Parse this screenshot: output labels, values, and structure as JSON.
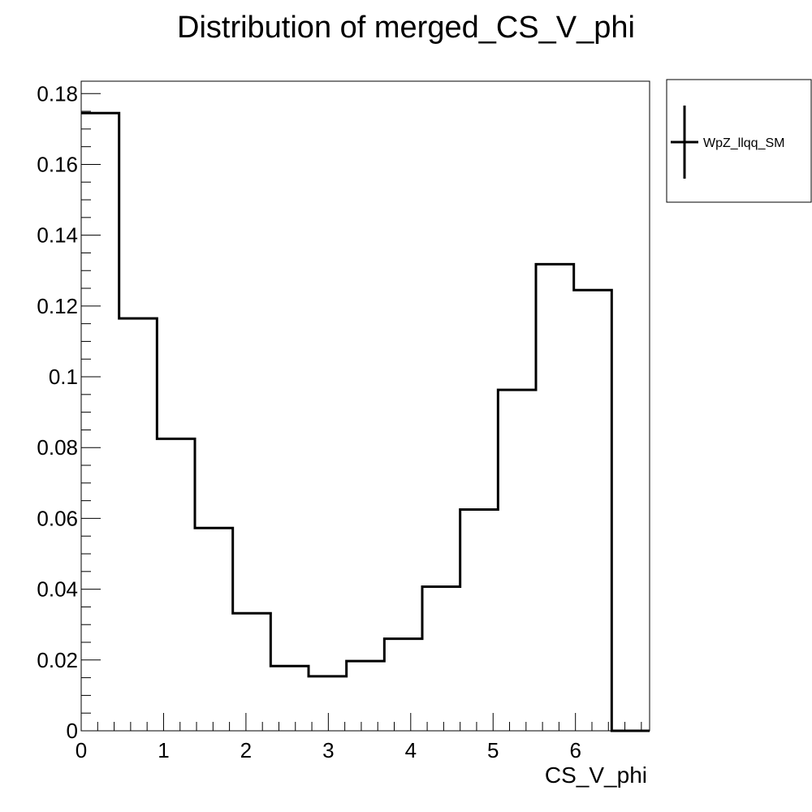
{
  "chart_data": {
    "type": "bar",
    "style": "step-histogram",
    "title": "Distribution of merged_CS_V_phi",
    "xlabel": "CS_V_phi",
    "ylabel": "",
    "xlim": [
      0,
      6.9
    ],
    "ylim": [
      0,
      0.1835
    ],
    "bin_edges": [
      0,
      0.46,
      0.92,
      1.38,
      1.84,
      2.3,
      2.76,
      3.22,
      3.68,
      4.14,
      4.6,
      5.06,
      5.52,
      5.98,
      6.44,
      6.9
    ],
    "series": [
      {
        "name": "WpZ_llqq_SM",
        "values": [
          0.1745,
          0.1165,
          0.0825,
          0.0573,
          0.0332,
          0.0183,
          0.0154,
          0.0197,
          0.026,
          0.0407,
          0.0625,
          0.0963,
          0.1318,
          0.1245,
          0.0
        ]
      }
    ],
    "x_ticks": [
      "0",
      "1",
      "2",
      "3",
      "4",
      "5",
      "6"
    ],
    "y_ticks": [
      "0",
      "0.02",
      "0.04",
      "0.06",
      "0.08",
      "0.1",
      "0.12",
      "0.14",
      "0.16",
      "0.18"
    ],
    "legend": {
      "position": "top-right-outside",
      "entries": [
        "WpZ_llqq_SM"
      ]
    },
    "grid": false,
    "line_color": "#000000"
  }
}
